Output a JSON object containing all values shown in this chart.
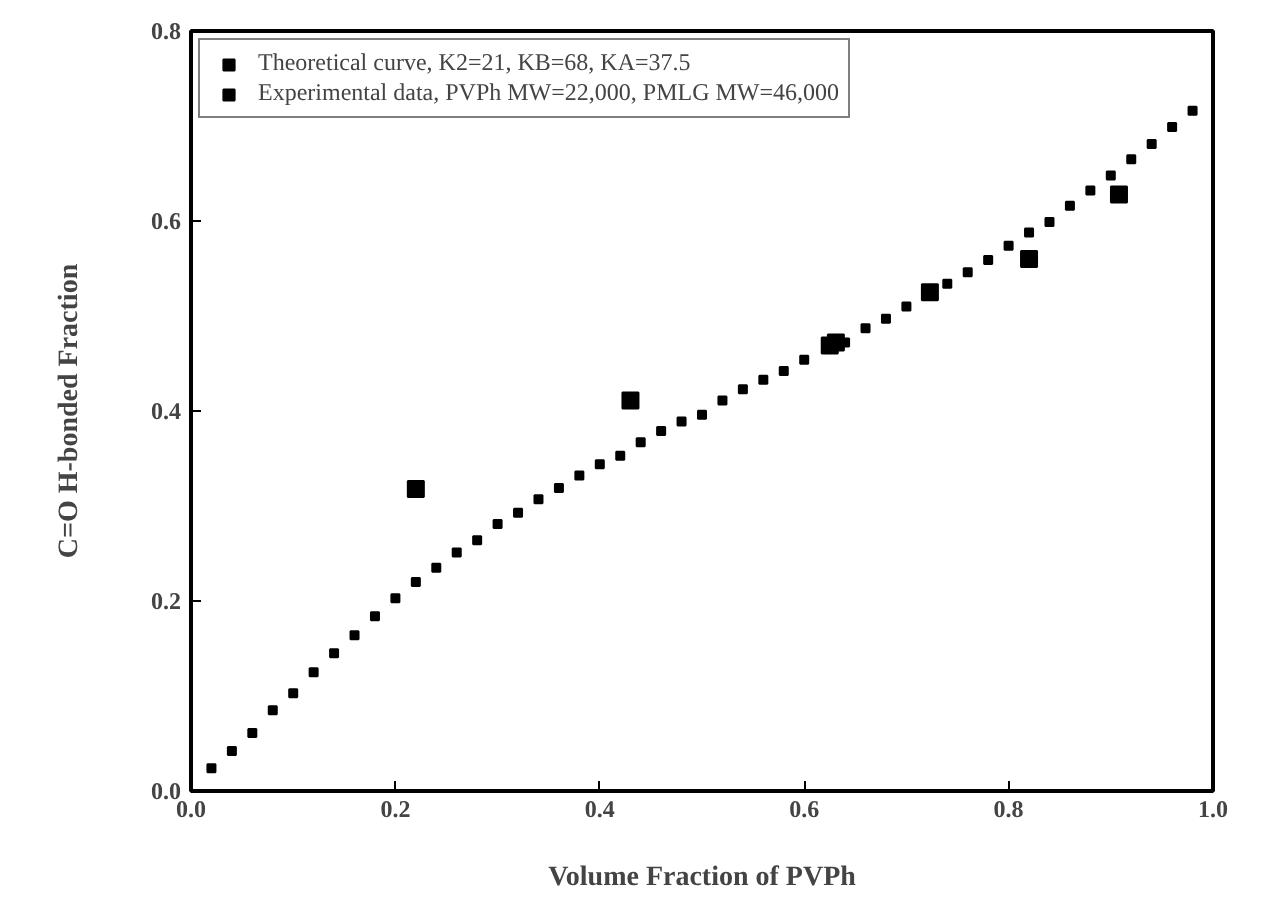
{
  "chart_data": {
    "type": "scatter",
    "xlabel": "Volume Fraction of PVPh",
    "ylabel": "C=O H-bonded Fraction",
    "xlim": [
      0.0,
      1.0
    ],
    "ylim": [
      0.0,
      0.8
    ],
    "xticks": [
      {
        "value": 0.0,
        "label": "0.0"
      },
      {
        "value": 0.2,
        "label": "0.2"
      },
      {
        "value": 0.4,
        "label": "0.4"
      },
      {
        "value": 0.6,
        "label": "0.6"
      },
      {
        "value": 0.8,
        "label": "0.8"
      },
      {
        "value": 1.0,
        "label": "1.0"
      }
    ],
    "yticks": [
      {
        "value": 0.0,
        "label": "0.0"
      },
      {
        "value": 0.2,
        "label": "0.2"
      },
      {
        "value": 0.4,
        "label": "0.4"
      },
      {
        "value": 0.6,
        "label": "0.6"
      },
      {
        "value": 0.8,
        "label": "0.8"
      }
    ],
    "grid": false,
    "legend": "top left",
    "marker": "square",
    "series": [
      {
        "name": "Theoretical curve, K2=21, KB=68, KA=37.5",
        "color": "#000000",
        "x": [
          0.02,
          0.04,
          0.06,
          0.08,
          0.1,
          0.12,
          0.14,
          0.16,
          0.18,
          0.2,
          0.22,
          0.24,
          0.26,
          0.28,
          0.3,
          0.32,
          0.34,
          0.36,
          0.38,
          0.4,
          0.42,
          0.44,
          0.46,
          0.48,
          0.5,
          0.52,
          0.54,
          0.56,
          0.58,
          0.6,
          0.62,
          0.64,
          0.66,
          0.68,
          0.7,
          0.72,
          0.74,
          0.76,
          0.78,
          0.8,
          0.82,
          0.84,
          0.86,
          0.88,
          0.9,
          0.92,
          0.94,
          0.96,
          0.98
        ],
        "values": [
          0.024,
          0.042,
          0.061,
          0.085,
          0.103,
          0.125,
          0.145,
          0.164,
          0.184,
          0.203,
          0.22,
          0.235,
          0.251,
          0.264,
          0.281,
          0.293,
          0.307,
          0.319,
          0.332,
          0.344,
          0.353,
          0.367,
          0.379,
          0.389,
          0.396,
          0.411,
          0.423,
          0.433,
          0.442,
          0.454,
          null,
          0.472,
          0.487,
          0.497,
          0.51,
          null,
          0.534,
          0.546,
          0.559,
          0.574,
          0.588,
          0.599,
          0.616,
          0.632,
          0.648,
          0.665,
          0.681,
          0.699,
          0.716
        ]
      },
      {
        "name": "Experimental data, PVPh MW=22,000, PMLG MW=46,000",
        "color": "#000000",
        "x": [
          0.22,
          0.43,
          0.625,
          0.631,
          0.723,
          0.82,
          0.908
        ],
        "values": [
          0.318,
          0.411,
          0.469,
          0.472,
          0.525,
          0.56,
          0.628
        ]
      }
    ]
  }
}
